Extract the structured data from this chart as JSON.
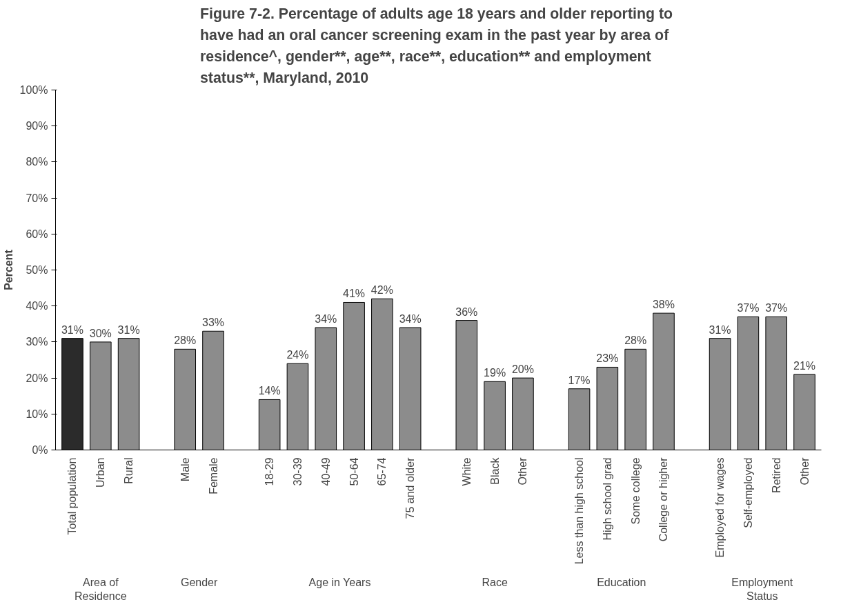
{
  "chart_data": {
    "type": "bar",
    "title": "Figure 7-2.  Percentage of adults age 18 years and older reporting to have had an oral cancer screening exam in the past year by area of residence^, gender**, age**, race**, education** and employment status**, Maryland, 2010",
    "ylabel": "Percent",
    "categories": [
      "Total population",
      "Urban",
      "Rural",
      null,
      "Male",
      "Female",
      null,
      "18-29",
      "30-39",
      "40-49",
      "50-64",
      "65-74",
      "75 and older",
      null,
      "White",
      "Black",
      "Other",
      null,
      "Less than high school",
      "High school grad",
      "Some college",
      "College or higher",
      null,
      "Employed for wages",
      "Self-employed",
      "Retired",
      "Other"
    ],
    "values": [
      31,
      30,
      31,
      null,
      28,
      33,
      null,
      14,
      24,
      34,
      41,
      42,
      34,
      null,
      36,
      19,
      20,
      null,
      17,
      23,
      28,
      38,
      null,
      31,
      37,
      37,
      21
    ],
    "value_labels": [
      "31%",
      "30%",
      "31%",
      null,
      "28%",
      "33%",
      null,
      "14%",
      "24%",
      "34%",
      "41%",
      "42%",
      "34%",
      null,
      "36%",
      "19%",
      "20%",
      null,
      "17%",
      "23%",
      "28%",
      "38%",
      null,
      "31%",
      "37%",
      "37%",
      "21%"
    ],
    "colors": [
      "#2b2b2b",
      "#8c8c8c",
      "#8c8c8c",
      null,
      "#8c8c8c",
      "#8c8c8c",
      null,
      "#8c8c8c",
      "#8c8c8c",
      "#8c8c8c",
      "#8c8c8c",
      "#8c8c8c",
      "#8c8c8c",
      null,
      "#8c8c8c",
      "#8c8c8c",
      "#8c8c8c",
      null,
      "#8c8c8c",
      "#8c8c8c",
      "#8c8c8c",
      "#8c8c8c",
      null,
      "#8c8c8c",
      "#8c8c8c",
      "#8c8c8c",
      "#8c8c8c"
    ],
    "ylim": [
      0,
      100
    ],
    "yticks": [
      {
        "value": 0,
        "label": "0%"
      },
      {
        "value": 10,
        "label": "10%"
      },
      {
        "value": 20,
        "label": "20%"
      },
      {
        "value": 30,
        "label": "30%"
      },
      {
        "value": 40,
        "label": "40%"
      },
      {
        "value": 50,
        "label": "50%"
      },
      {
        "value": 60,
        "label": "60%"
      },
      {
        "value": 70,
        "label": "70%"
      },
      {
        "value": 80,
        "label": "80%"
      },
      {
        "value": 90,
        "label": "90%"
      },
      {
        "value": 100,
        "label": "100%"
      }
    ],
    "grid": false,
    "annotations": [
      "Area of Residence",
      "Gender",
      "Age in Years",
      "Race",
      "Education",
      "Employment Status"
    ]
  }
}
